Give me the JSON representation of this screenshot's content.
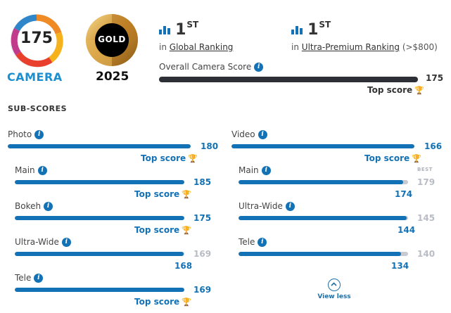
{
  "badge": {
    "score": "175",
    "label": "CAMERA",
    "medal": "GOLD",
    "year": "2025"
  },
  "rankings": {
    "global": {
      "rank": "1",
      "suffix": "ST",
      "prefix": "in",
      "link": "Global Ranking"
    },
    "segment": {
      "rank": "1",
      "suffix": "ST",
      "prefix": "in",
      "link": "Ultra-Premium Ranking",
      "note": "(>$800)"
    }
  },
  "overall": {
    "label": "Overall Camera Score",
    "value": "175",
    "fill": 1.0,
    "top_score_label": "Top score"
  },
  "subscores": {
    "title": "SUB-SCORES",
    "photo": {
      "label": "Photo",
      "value": "180",
      "fill": 1.0,
      "top_score_label": "Top score",
      "items": [
        {
          "label": "Main",
          "value": "185",
          "fill": 1.0,
          "top_score_label": "Top score"
        },
        {
          "label": "Bokeh",
          "value": "175",
          "fill": 1.0,
          "top_score_label": "Top score"
        },
        {
          "label": "Ultra-Wide",
          "value": "168",
          "best": "169",
          "fill": 0.994
        },
        {
          "label": "Tele",
          "value": "169",
          "fill": 1.0,
          "top_score_label": "Top score"
        }
      ]
    },
    "video": {
      "label": "Video",
      "value": "166",
      "fill": 1.0,
      "top_score_label": "Top score",
      "items": [
        {
          "label": "Main",
          "value": "174",
          "best": "179",
          "best_label": "BEST",
          "fill": 0.972
        },
        {
          "label": "Ultra-Wide",
          "value": "144",
          "best": "145",
          "fill": 0.993
        },
        {
          "label": "Tele",
          "value": "134",
          "best": "140",
          "fill": 0.957
        }
      ]
    },
    "view_less_label": "View less"
  },
  "colors": {
    "accent": "#1372b5",
    "track": "#c7cad1",
    "dark_bar": "#2d2f36",
    "trophy": "#f2a516"
  }
}
